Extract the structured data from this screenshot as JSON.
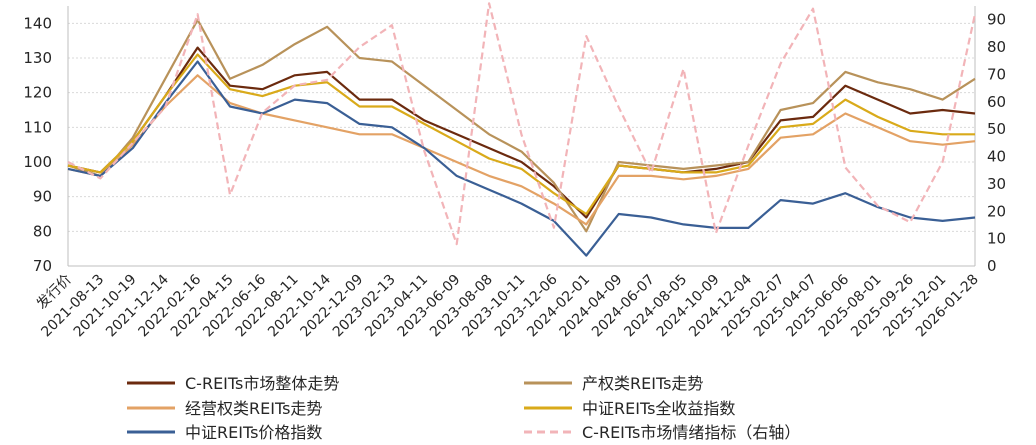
{
  "chart_data": {
    "type": "line",
    "title": "",
    "xlabel": "",
    "ylabel": "",
    "ylim": [
      70,
      145
    ],
    "y_ticks": [
      70,
      80,
      90,
      100,
      110,
      120,
      130,
      140
    ],
    "y2lim": [
      0,
      95
    ],
    "y2_ticks": [
      0,
      10,
      20,
      30,
      40,
      50,
      60,
      70,
      80,
      90
    ],
    "grid": "horizontal",
    "legend_position": "bottom",
    "categories": [
      "发行价",
      "2021-08-13",
      "2021-10-19",
      "2021-12-14",
      "2022-02-16",
      "2022-04-15",
      "2022-06-16",
      "2022-08-11",
      "2022-10-14",
      "2022-12-09",
      "2023-02-13",
      "2023-04-11",
      "2023-06-09",
      "2023-08-08",
      "2023-10-11",
      "2023-12-06",
      "2024-02-01",
      "2024-04-09",
      "2024-06-07",
      "2024-08-05",
      "2024-10-09",
      "2024-12-04",
      "2025-02-07",
      "2025-04-07",
      "2025-06-06",
      "2025-08-01",
      "2025-09-26",
      "2025-12-01",
      "2026-01-28"
    ],
    "series": [
      {
        "name": "C-REITs市场整体走势",
        "axis": "left",
        "color": "#6b2a0e",
        "dash": "",
        "width": 2.2,
        "values": [
          99,
          97,
          106,
          119,
          133,
          122,
          121,
          125,
          126,
          118,
          118,
          112,
          108,
          104,
          100,
          93,
          84,
          99,
          98,
          97,
          98,
          100,
          112,
          113,
          122,
          118,
          114,
          115,
          114
        ]
      },
      {
        "name": "产权类REITs走势",
        "axis": "left",
        "color": "#b8925a",
        "dash": "",
        "width": 2.2,
        "values": [
          99,
          96,
          107,
          124,
          141,
          124,
          128,
          134,
          139,
          130,
          129,
          122,
          115,
          108,
          103,
          94,
          80,
          100,
          99,
          98,
          99,
          100,
          115,
          117,
          126,
          123,
          121,
          118,
          124
        ]
      },
      {
        "name": "经营权类REITs走势",
        "axis": "left",
        "color": "#e3a265",
        "dash": "",
        "width": 2.2,
        "values": [
          98,
          96,
          105,
          116,
          125,
          117,
          114,
          112,
          110,
          108,
          108,
          104,
          100,
          96,
          93,
          88,
          82,
          96,
          96,
          95,
          96,
          98,
          107,
          108,
          114,
          110,
          106,
          105,
          106
        ]
      },
      {
        "name": "中证REITs全收益指数",
        "axis": "left",
        "color": "#d9aa1a",
        "dash": "",
        "width": 2.2,
        "values": [
          99,
          97,
          106,
          119,
          131,
          121,
          119,
          122,
          123,
          116,
          116,
          111,
          106,
          101,
          98,
          91,
          85,
          99,
          98,
          97,
          97,
          99,
          110,
          111,
          118,
          113,
          109,
          108,
          108
        ]
      },
      {
        "name": "中证REITs价格指数",
        "axis": "left",
        "color": "#3a5f95",
        "dash": "",
        "width": 2.2,
        "values": [
          98,
          96,
          104,
          117,
          129,
          116,
          114,
          118,
          117,
          111,
          110,
          104,
          96,
          92,
          88,
          83,
          73,
          85,
          84,
          82,
          81,
          81,
          89,
          88,
          91,
          87,
          84,
          83,
          84
        ]
      },
      {
        "name": "C-REITs市场情绪指标（右轴）",
        "axis": "right",
        "color": "#f2b4b8",
        "dash": "7,4",
        "width": 2.2,
        "values": [
          38,
          32,
          45,
          58,
          92,
          26,
          56,
          66,
          68,
          80,
          88,
          42,
          8,
          96,
          48,
          14,
          84,
          58,
          34,
          72,
          12,
          44,
          74,
          94,
          36,
          22,
          16,
          38,
          92
        ]
      }
    ]
  }
}
